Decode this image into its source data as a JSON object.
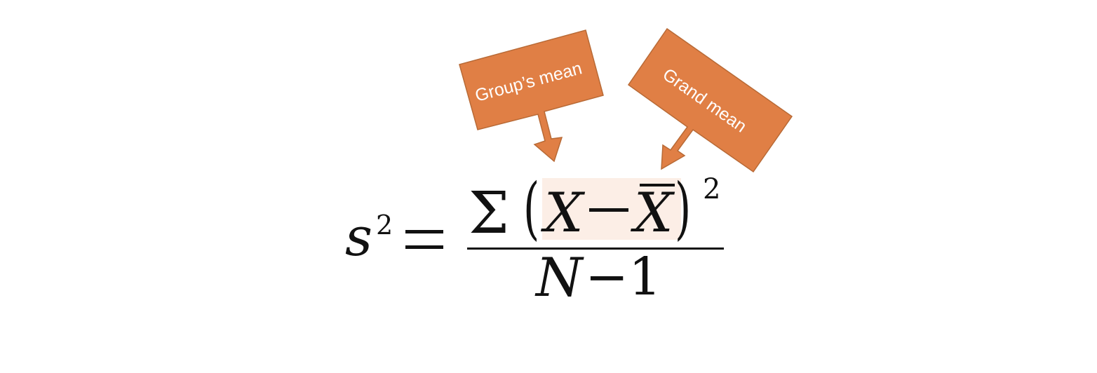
{
  "formula": {
    "lhs_symbol": "s",
    "lhs_exponent": "2",
    "equals": "=",
    "sum_symbol": "Σ",
    "paren_open": "(",
    "x_symbol": "X",
    "minus": "−",
    "xbar_symbol": "X",
    "paren_close": ")",
    "exponent": "2",
    "denominator_n": "N",
    "denominator_rest": "−1"
  },
  "callouts": {
    "group_mean": "Group’s mean",
    "grand_mean": "Grand mean"
  },
  "colors": {
    "callout_fill": "#E07F45",
    "callout_stroke": "#B86A36",
    "highlight": "#FCEEE6",
    "text": "#111111"
  }
}
